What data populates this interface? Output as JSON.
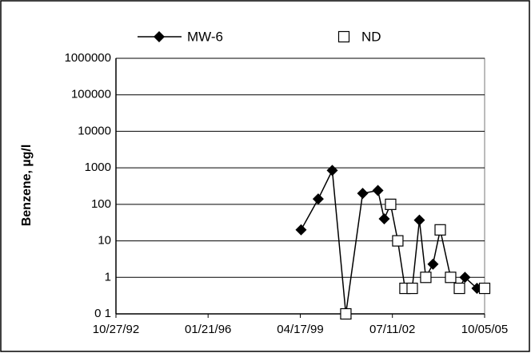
{
  "chart_data": {
    "type": "line",
    "y_label": "Benzene, µg/l",
    "log_y": true,
    "grid": true,
    "xlim": [
      "10/27/92",
      "10/05/05"
    ],
    "xticks": [
      "10/27/92",
      "01/21/96",
      "04/17/99",
      "07/11/02",
      "10/05/05"
    ],
    "ylim": [
      0.1,
      1000000
    ],
    "yticks": [
      {
        "value": 0.1,
        "label": "0 1"
      },
      1,
      10,
      100,
      1000,
      10000,
      100000,
      1000000
    ],
    "series": [
      {
        "name": "MW-6",
        "color": "#000000",
        "marker": "diamond",
        "x": [
          "04/27/99",
          "12/03/99",
          "05/31/00",
          "11/21/00",
          "06/25/01",
          "01/06/02",
          "03/28/02",
          "06/18/02",
          "09/18/02",
          "12/19/02",
          "03/22/03",
          "06/22/03",
          "09/12/03",
          "12/13/03",
          "03/15/04",
          "07/26/04",
          "11/16/04",
          "01/26/05",
          "06/29/05",
          "10/05/05"
        ],
        "values": [
          20,
          140,
          850,
          0.1,
          200,
          240,
          40,
          100,
          10,
          0.5,
          0.5,
          37,
          1,
          2.3,
          20,
          1,
          0.5,
          1,
          0.5,
          0.5
        ]
      },
      {
        "name": "ND",
        "color": "#000000",
        "marker": "square",
        "line": false,
        "x": [
          "11/21/00",
          "06/18/02",
          "09/18/02",
          "12/19/02",
          "03/22/03",
          "09/12/03",
          "03/15/04",
          "07/26/04",
          "11/16/04",
          "10/05/05"
        ],
        "values": [
          0.1,
          100,
          10,
          0.5,
          0.5,
          1,
          20,
          1,
          0.5,
          0.5
        ]
      }
    ]
  }
}
